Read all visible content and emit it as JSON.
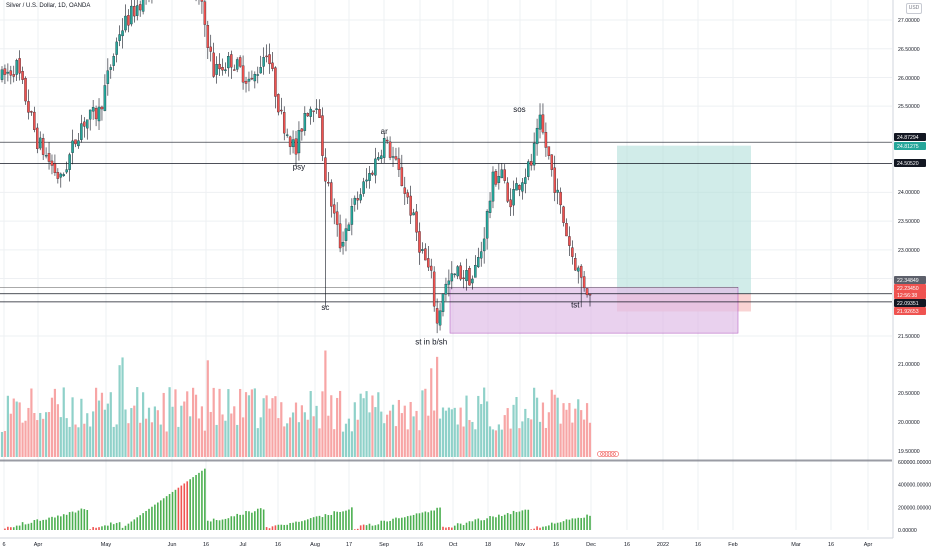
{
  "header": {
    "title": "Silver / U.S. Dollar, 1D, OANDA",
    "currency_badge": "USD"
  },
  "colors": {
    "up": "#26a69a",
    "down": "#ef5350",
    "volume_up": "#8fd1c9",
    "volume_down": "#f7a5a5",
    "obv_bar": "#4caf50",
    "obv_bar_red": "#ef5350",
    "target_zone": "#b2dfdb",
    "stop_zone": "#f8c8c8",
    "range_box": "#e1bee7",
    "grid": "#eef0f3",
    "axis_text": "#131722"
  },
  "chart_data": [
    {
      "type": "candlestick",
      "title": "Silver / U.S. Dollar, 1D, OANDA",
      "x_tick_labels": [
        "6",
        "Apr",
        "May",
        "Jun",
        "16",
        "Jul",
        "16",
        "Aug",
        "17",
        "Sep",
        "16",
        "Oct",
        "18",
        "Nov",
        "16",
        "Dec",
        "16",
        "2022",
        "16",
        "Feb",
        "Mar",
        "16",
        "Apr"
      ],
      "y_tick_labels": [
        "27.00000",
        "26.50000",
        "26.00000",
        "25.50000",
        "24.00000",
        "23.50000",
        "23.00000",
        "22.50000",
        "21.50000"
      ],
      "ylim": [
        21.3,
        27.1
      ],
      "price_tags": [
        {
          "label": "24.87294",
          "value": 24.873,
          "style": "dark"
        },
        {
          "label": "24.81275",
          "value": 24.813,
          "style": "green"
        },
        {
          "label": "24.50520",
          "value": 24.505,
          "style": "dark"
        },
        {
          "label": "22.34849",
          "value": 22.348,
          "style": "gray"
        },
        {
          "label": "22.23450",
          "value": 22.235,
          "style": "red"
        },
        {
          "label": "12:56:38",
          "value": 22.16,
          "style": "red"
        },
        {
          "label": "22.09351",
          "value": 22.094,
          "style": "dark"
        },
        {
          "label": "21.92653",
          "value": 21.927,
          "style": "red"
        }
      ],
      "horizontal_levels": [
        24.873,
        24.505,
        22.235,
        22.094
      ],
      "wyckoff_labels": [
        {
          "text": "psy",
          "date_index": 101,
          "price": 24.4
        },
        {
          "text": "ar",
          "date_index": 130,
          "price": 25.02
        },
        {
          "text": "sc",
          "date_index": 110,
          "price": 21.95
        },
        {
          "text": "st in b/sh",
          "date_index": 146,
          "price": 21.35
        },
        {
          "text": "sos",
          "date_index": 176,
          "price": 25.4
        },
        {
          "text": "tst",
          "date_index": 195,
          "price": 22.0
        }
      ],
      "long_position": {
        "entry": 22.235,
        "target": 24.813,
        "stop": 21.927
      },
      "range_box": {
        "top": 22.348,
        "bottom": 21.55
      }
    },
    {
      "type": "bar",
      "title": "Volume",
      "series": [],
      "y_tick_labels": [
        "21.00000",
        "20.50000",
        "20.00000",
        "19.50000"
      ]
    },
    {
      "type": "bar",
      "title": "",
      "y_tick_labels": [
        "600000.00000",
        "400000.00000",
        "200000.00000",
        "0.00000"
      ],
      "ylim": [
        0,
        600000
      ]
    }
  ]
}
